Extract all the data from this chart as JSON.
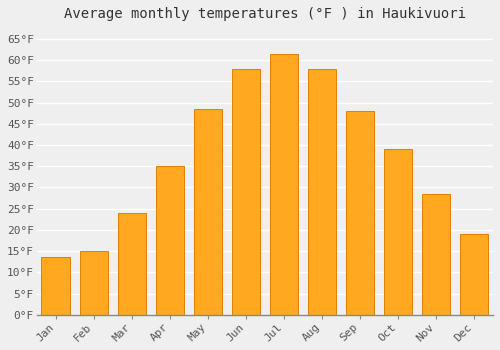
{
  "months": [
    "Jan",
    "Feb",
    "Mar",
    "Apr",
    "May",
    "Jun",
    "Jul",
    "Aug",
    "Sep",
    "Oct",
    "Nov",
    "Dec"
  ],
  "values": [
    13.5,
    15.0,
    24.0,
    35.0,
    48.5,
    58.0,
    61.5,
    58.0,
    48.0,
    39.0,
    28.5,
    19.0
  ],
  "bar_color_main": "#FFA820",
  "bar_color_edge": "#E08000",
  "title": "Average monthly temperatures (°F ) in Haukivuori",
  "ylim": [
    0,
    68
  ],
  "yticks": [
    0,
    5,
    10,
    15,
    20,
    25,
    30,
    35,
    40,
    45,
    50,
    55,
    60,
    65
  ],
  "ytick_labels": [
    "0°F",
    "5°F",
    "10°F",
    "15°F",
    "20°F",
    "25°F",
    "30°F",
    "35°F",
    "40°F",
    "45°F",
    "50°F",
    "55°F",
    "60°F",
    "65°F"
  ],
  "background_color": "#efefef",
  "grid_color": "#ffffff",
  "title_fontsize": 10,
  "tick_fontsize": 8,
  "bar_width": 0.75
}
